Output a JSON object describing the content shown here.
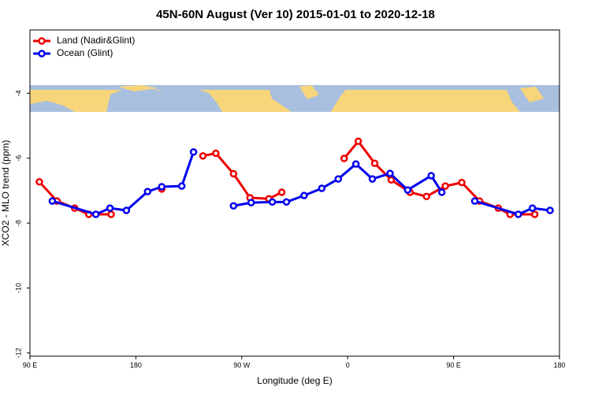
{
  "chart_data": {
    "type": "line",
    "title": "45N-60N August (Ver 10)   2015-01-01 to 2020-12-18",
    "x_label": "Longitude (deg E)",
    "y_label": "XCO2 - MLO trend (ppm)",
    "xlim": [
      90,
      540
    ],
    "xticks": [
      {
        "value": 90,
        "label": "90 E"
      },
      180,
      {
        "value": 270,
        "label": "90 W"
      },
      {
        "value": 360,
        "label": "0"
      },
      {
        "value": 450,
        "label": "90 E"
      },
      {
        "value": 540,
        "label": "180"
      }
    ],
    "ylim": [
      -12.1,
      -2.05
    ],
    "yticks": [
      -12,
      -10,
      -8,
      -6,
      -4
    ],
    "legend": "top-left",
    "series": [
      {
        "name": "Land (Nadir&Glint)",
        "color": "#ee0000",
        "x": [
          98,
          113,
          128,
          140,
          159,
          null,
          202,
          null,
          237,
          248,
          263,
          277,
          293,
          304,
          null,
          357,
          369,
          383,
          397,
          413,
          427,
          443,
          457,
          472,
          488,
          498,
          519
        ],
        "values": [
          -6.73,
          -7.32,
          -7.54,
          -7.73,
          -7.73,
          null,
          -6.95,
          null,
          -5.93,
          -5.85,
          -6.48,
          -7.22,
          -7.25,
          -7.05,
          null,
          -6.01,
          -5.48,
          -6.16,
          -6.67,
          -7.05,
          -7.18,
          -6.86,
          -6.75,
          -7.32,
          -7.54,
          -7.73,
          -7.73
        ]
      },
      {
        "name": "Ocean (Glint)",
        "color": "#0000ee",
        "x": [
          109,
          146,
          158,
          172,
          190,
          202,
          219,
          229,
          null,
          263,
          278,
          296,
          308,
          323,
          338,
          352,
          367,
          381,
          396,
          411,
          431,
          440,
          null,
          468,
          505,
          517,
          532
        ],
        "values": [
          -7.32,
          -7.73,
          -7.54,
          -7.61,
          -7.03,
          -6.88,
          -6.86,
          -5.81,
          null,
          -7.47,
          -7.37,
          -7.35,
          -7.35,
          -7.15,
          -6.93,
          -6.64,
          -6.18,
          -6.64,
          -6.47,
          -6.98,
          -6.54,
          -7.05,
          null,
          -7.32,
          -7.73,
          -7.54,
          -7.61
        ]
      }
    ]
  }
}
